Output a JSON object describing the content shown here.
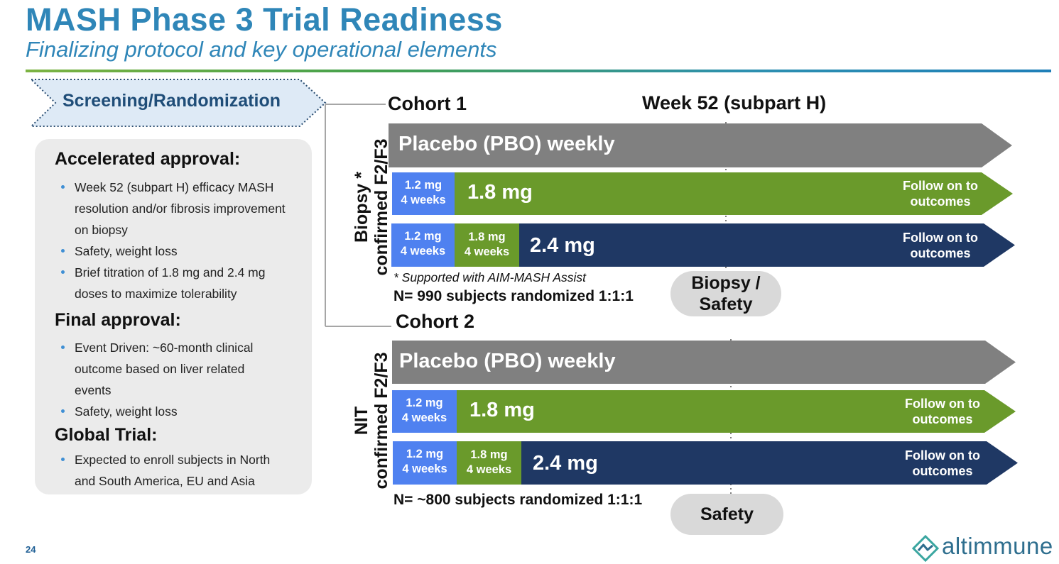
{
  "header": {
    "title": "MASH Phase 3 Trial Readiness",
    "subtitle": "Finalizing protocol and key operational elements"
  },
  "screening": {
    "label": "Screening/Randomization"
  },
  "info": {
    "accelerated": {
      "heading": "Accelerated approval:",
      "bullets": [
        "Week 52 (subpart H) efficacy MASH resolution and/or fibrosis improvement on biopsy",
        "Safety, weight loss",
        "Brief titration of 1.8 mg and 2.4 mg doses to maximize tolerability"
      ]
    },
    "final": {
      "heading": "Final approval:",
      "bullets": [
        "Event Driven: ~60-month clinical outcome based on liver related events",
        "Safety, weight loss"
      ]
    },
    "global": {
      "heading": "Global Trial:",
      "bullets": [
        "Expected to enroll subjects in North and South America, EU and Asia"
      ]
    }
  },
  "week_label": "Week 52 (subpart H)",
  "cohort1": {
    "label": "Cohort 1",
    "side_line1": "Biopsy *",
    "side_line2": "confirmed F2/F3",
    "placebo": "Placebo (PBO) weekly",
    "titration_a_line1": "1.2 mg",
    "titration_a_line2": "4 weeks",
    "dose_18": "1.8 mg",
    "follow_a_line1": "Follow on to",
    "follow_a_line2": "outcomes",
    "titration_b1_line1": "1.2 mg",
    "titration_b1_line2": "4 weeks",
    "titration_b2_line1": "1.8 mg",
    "titration_b2_line2": "4 weeks",
    "dose_24": "2.4 mg",
    "follow_b_line1": "Follow on to",
    "follow_b_line2": "outcomes",
    "footnote": "* Supported with AIM-MASH Assist",
    "n_text": "N= 990 subjects randomized 1:1:1",
    "pill_line1": "Biopsy /",
    "pill_line2": "Safety"
  },
  "cohort2": {
    "label": "Cohort 2",
    "side_line1": "NIT",
    "side_line2": "confirmed F2/F3",
    "placebo": "Placebo (PBO) weekly",
    "titration_a_line1": "1.2 mg",
    "titration_a_line2": "4 weeks",
    "dose_18": "1.8 mg",
    "follow_a_line1": "Follow on to",
    "follow_a_line2": "outcomes",
    "titration_b1_line1": "1.2 mg",
    "titration_b1_line2": "4 weeks",
    "titration_b2_line1": "1.8 mg",
    "titration_b2_line2": "4 weeks",
    "dose_24": "2.4 mg",
    "follow_b_line1": "Follow on to",
    "follow_b_line2": "outcomes",
    "n_text": "N= ~800 subjects randomized 1:1:1",
    "pill": "Safety"
  },
  "footer": {
    "page_number": "24",
    "logo": "altimmune"
  },
  "colors": {
    "title_blue": "#2f86b8",
    "placebo_gray": "#808080",
    "titration_blue": "#4f81f0",
    "green": "#6a9a2b",
    "navy": "#1f3864"
  }
}
